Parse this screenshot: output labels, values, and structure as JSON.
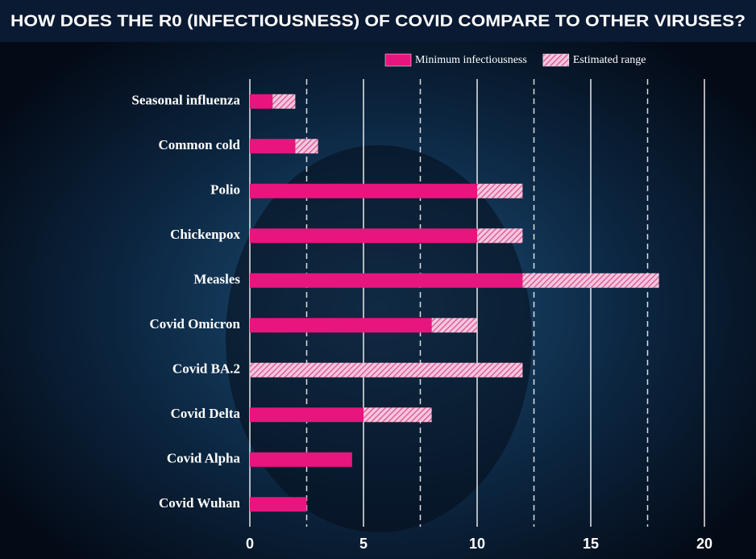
{
  "chart_data": {
    "type": "stacked_barh",
    "title": "HOW DOES THE R0 (INFECTIOUSNESS) OF COVID COMPARE TO OTHER VIRUSES?",
    "categories": [
      "Seasonal influenza",
      "Common cold",
      "Polio",
      "Chickenpox",
      "Measles",
      "Covid Omicron",
      "Covid BA.2",
      "Covid  Delta",
      "Covid  Alpha",
      "Covid Wuhan"
    ],
    "series": [
      {
        "name": "Minimum infectiousness",
        "color": "#e8157f",
        "values": [
          1,
          2,
          10,
          10,
          12,
          8,
          0,
          5,
          4.5,
          2.5
        ]
      },
      {
        "name": "Estimated range",
        "color": "#e58ab8",
        "hatched": true,
        "values": [
          1,
          1,
          2,
          2,
          6,
          2,
          12,
          3,
          0,
          0
        ]
      }
    ],
    "xlim": [
      0,
      21
    ],
    "xticks": [
      0,
      5,
      10,
      15,
      20
    ],
    "xminorticks": [
      2.5,
      7.5,
      12.5,
      17.5
    ],
    "grid": true
  }
}
